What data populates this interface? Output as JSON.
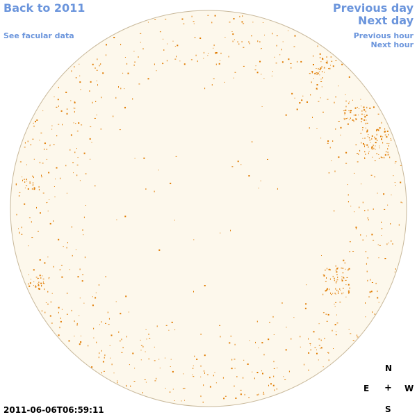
{
  "nav": {
    "back": "Back to 2011",
    "facular": "See facular data",
    "previous_day": "Previous day",
    "next_day": "Next day",
    "previous_hour": "Previous hour",
    "next_hour": "Next hour"
  },
  "compass": {
    "north": "N",
    "east": "E",
    "center": "+",
    "west": "W",
    "south": "S"
  },
  "timestamp": "2011-06-06T06:59:11",
  "colors": {
    "link": "#6b95dc",
    "disk_fill": "#fdf8ec",
    "disk_stroke": "#c8b89a",
    "facula": "#e07b00"
  }
}
